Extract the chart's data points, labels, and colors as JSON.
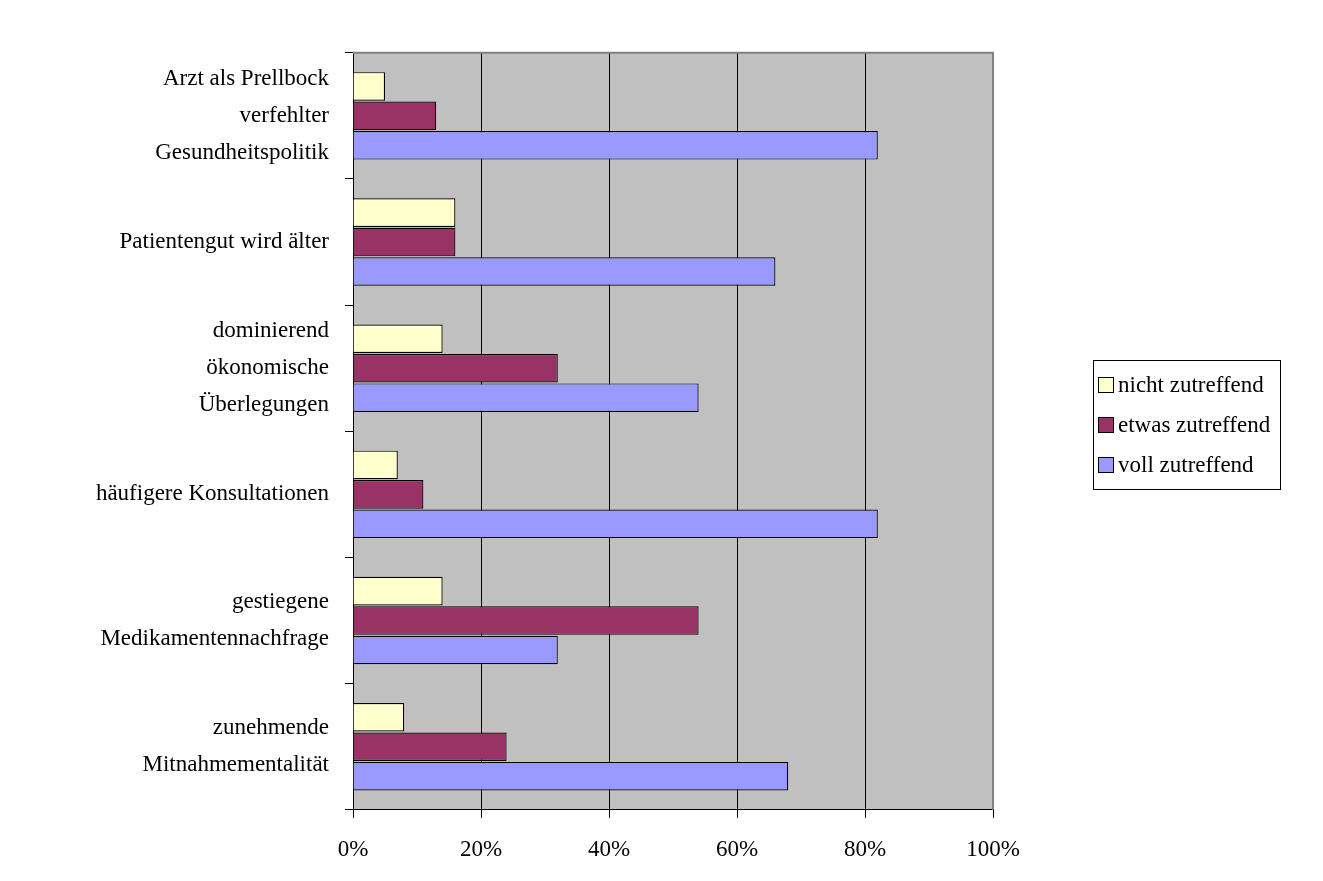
{
  "chart_data": {
    "type": "bar",
    "orientation": "horizontal",
    "categories": [
      "Arzt als Prellbock\nverfehlter\nGesundheitspolitik",
      "Patientengut wird älter",
      "dominierend\nökonomische\nÜberlegungen",
      "häufigere Konsultationen",
      "gestiegene\nMedikamentennachfrage",
      "zunehmende\nMitnahmementalität"
    ],
    "series": [
      {
        "name": "nicht zutreffend",
        "color": "#ffffcc",
        "values": [
          5,
          16,
          14,
          7,
          14,
          8
        ]
      },
      {
        "name": "etwas zutreffend",
        "color": "#993366",
        "values": [
          13,
          16,
          32,
          11,
          54,
          24
        ]
      },
      {
        "name": "voll zutreffend",
        "color": "#9999ff",
        "values": [
          82,
          66,
          54,
          82,
          32,
          68
        ]
      }
    ],
    "xlim": [
      0,
      100
    ],
    "xticks": [
      {
        "value": 0,
        "label": "0%"
      },
      {
        "value": 20,
        "label": "20%"
      },
      {
        "value": 40,
        "label": "40%"
      },
      {
        "value": 60,
        "label": "60%"
      },
      {
        "value": 80,
        "label": "80%"
      },
      {
        "value": 100,
        "label": "100%"
      }
    ],
    "grid": "x",
    "legend": "right"
  }
}
